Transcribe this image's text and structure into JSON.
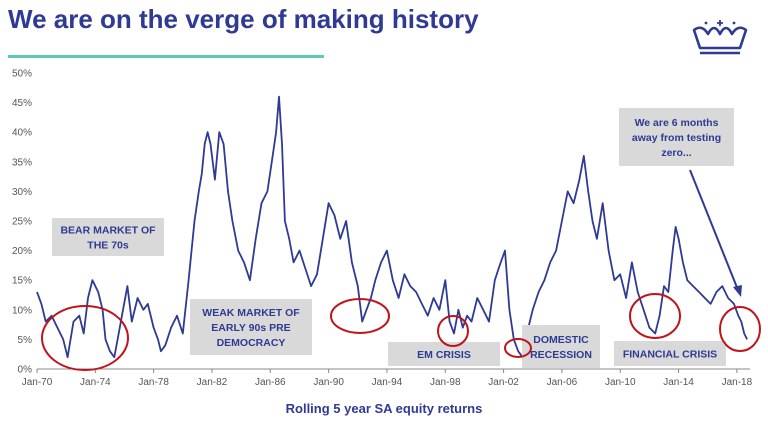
{
  "page": {
    "title": "We are on the verge of making history",
    "caption": "Rolling 5 year SA equity returns",
    "colors": {
      "title": "#2e3a93",
      "line": "#2e3a93",
      "rule": "#5fc9b9",
      "circle": "#c0141b",
      "box": "#d9d9d9"
    },
    "logo_icon": "crown-icon"
  },
  "chart_data": {
    "type": "line",
    "title": "",
    "xlabel": "Rolling 5 year SA equity returns",
    "ylabel": "",
    "xlim": [
      1970.0,
      2018.9
    ],
    "ylim": [
      0,
      50
    ],
    "yticks": [
      0,
      5,
      10,
      15,
      20,
      25,
      30,
      35,
      40,
      45,
      50
    ],
    "ytick_labels": [
      "0%",
      "5%",
      "10%",
      "15%",
      "20%",
      "25%",
      "30%",
      "35%",
      "40%",
      "45%",
      "50%"
    ],
    "xticks": [
      1970,
      1974,
      1978,
      1982,
      1986,
      1990,
      1994,
      1998,
      2002,
      2006,
      2010,
      2014,
      2018
    ],
    "xtick_labels": [
      "Jan-70",
      "Jan-74",
      "Jan-78",
      "Jan-82",
      "Jan-86",
      "Jan-90",
      "Jan-94",
      "Jan-98",
      "Jan-02",
      "Jan-06",
      "Jan-10",
      "Jan-14",
      "Jan-18"
    ],
    "grid": false,
    "series": [
      {
        "name": "",
        "x": [
          1970.0,
          1970.3,
          1970.6,
          1971.0,
          1971.4,
          1971.8,
          1972.1,
          1972.5,
          1972.9,
          1973.2,
          1973.5,
          1973.8,
          1974.2,
          1974.5,
          1974.7,
          1975.0,
          1975.3,
          1975.6,
          1975.9,
          1976.2,
          1976.5,
          1976.9,
          1977.3,
          1977.6,
          1978.0,
          1978.3,
          1978.5,
          1978.8,
          1979.2,
          1979.6,
          1980.0,
          1980.4,
          1980.8,
          1981.1,
          1981.3,
          1981.5,
          1981.7,
          1981.9,
          1982.2,
          1982.5,
          1982.8,
          1983.1,
          1983.4,
          1983.8,
          1984.2,
          1984.6,
          1985.0,
          1985.4,
          1985.8,
          1986.1,
          1986.4,
          1986.6,
          1986.8,
          1987.0,
          1987.3,
          1987.6,
          1988.0,
          1988.4,
          1988.8,
          1989.2,
          1989.6,
          1990.0,
          1990.4,
          1990.8,
          1991.2,
          1991.6,
          1992.0,
          1992.3,
          1992.6,
          1992.9,
          1993.2,
          1993.6,
          1994.0,
          1994.4,
          1994.8,
          1995.2,
          1995.6,
          1996.0,
          1996.4,
          1996.8,
          1997.2,
          1997.6,
          1998.0,
          1998.3,
          1998.6,
          1998.9,
          1999.2,
          1999.5,
          1999.8,
          2000.2,
          2000.6,
          2001.0,
          2001.4,
          2001.8,
          2002.1,
          2002.4,
          2002.7,
          2003.0,
          2003.3,
          2003.6,
          2004.0,
          2004.4,
          2004.8,
          2005.2,
          2005.6,
          2006.0,
          2006.4,
          2006.8,
          2007.2,
          2007.5,
          2007.8,
          2008.1,
          2008.4,
          2008.8,
          2009.2,
          2009.6,
          2010.0,
          2010.4,
          2010.8,
          2011.2,
          2011.6,
          2012.0,
          2012.4,
          2012.7,
          2013.0,
          2013.3,
          2013.6,
          2013.8,
          2014.0,
          2014.3,
          2014.6,
          2015.0,
          2015.4,
          2015.8,
          2016.2,
          2016.6,
          2017.0,
          2017.4,
          2017.8,
          2018.1,
          2018.3,
          2018.5,
          2018.7
        ],
        "y": [
          13,
          11,
          8,
          9,
          7,
          5,
          2,
          8,
          9,
          6,
          12,
          15,
          13,
          10,
          5,
          3,
          2,
          6,
          10,
          14,
          8,
          12,
          10,
          11,
          7,
          5,
          3,
          4,
          7,
          9,
          6,
          15,
          25,
          30,
          33,
          38,
          40,
          38,
          32,
          40,
          38,
          30,
          25,
          20,
          18,
          15,
          22,
          28,
          30,
          35,
          40,
          46,
          38,
          25,
          22,
          18,
          20,
          17,
          14,
          16,
          22,
          28,
          26,
          22,
          25,
          18,
          14,
          8,
          10,
          12,
          15,
          18,
          20,
          15,
          12,
          16,
          14,
          13,
          11,
          9,
          12,
          10,
          15,
          8,
          6,
          10,
          7,
          9,
          8,
          12,
          10,
          8,
          15,
          18,
          20,
          10,
          5,
          3,
          2,
          6,
          10,
          13,
          15,
          18,
          20,
          25,
          30,
          28,
          32,
          36,
          30,
          25,
          22,
          28,
          20,
          15,
          16,
          12,
          18,
          13,
          10,
          7,
          6,
          9,
          14,
          13,
          20,
          24,
          22,
          18,
          15,
          14,
          13,
          12,
          11,
          13,
          14,
          12,
          11,
          9,
          8,
          6,
          5
        ]
      }
    ],
    "annotations": [
      {
        "type": "box",
        "lines": [
          "BEAR MARKET OF",
          "THE 70s"
        ]
      },
      {
        "type": "box",
        "lines": [
          "WEAK MARKET OF",
          "EARLY 90s PRE",
          "DEMOCRACY"
        ]
      },
      {
        "type": "box",
        "lines": [
          "EM CRISIS"
        ]
      },
      {
        "type": "box",
        "lines": [
          "DOMESTIC",
          "RECESSION"
        ]
      },
      {
        "type": "box",
        "lines": [
          "FINANCIAL CRISIS"
        ]
      },
      {
        "type": "box",
        "lines": [
          "We are 6 months",
          "away from testing",
          "zero..."
        ]
      }
    ]
  }
}
